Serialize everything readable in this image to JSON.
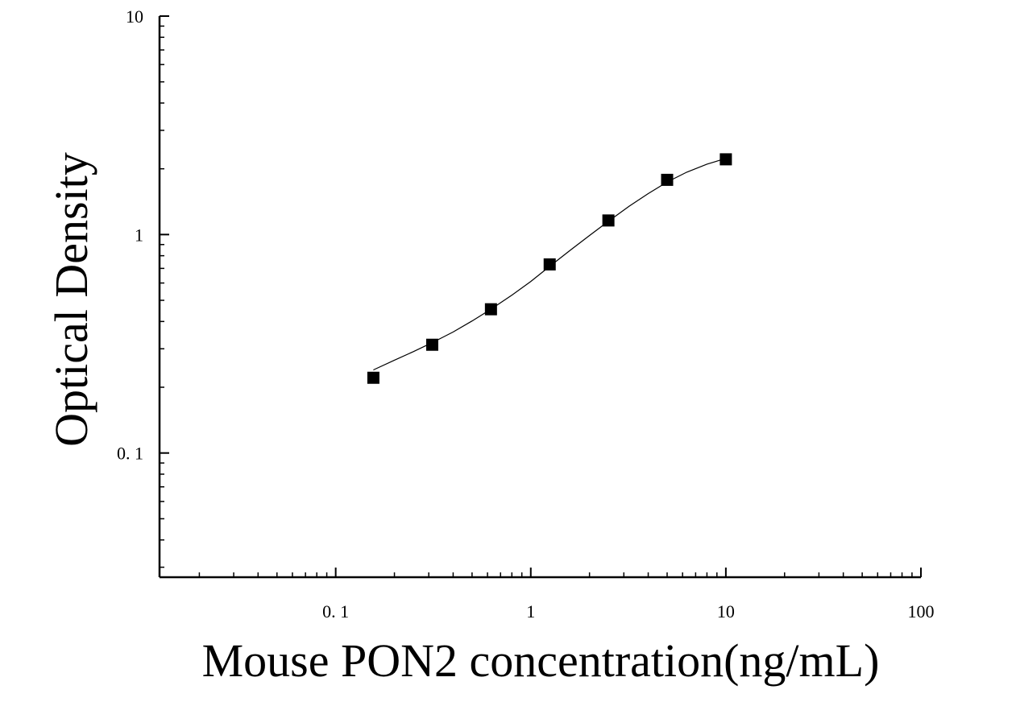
{
  "chart_data": {
    "type": "scatter",
    "title": "",
    "xlabel": "Mouse PON2 concentration(ng/mL)",
    "ylabel": "Optical Density",
    "x_scale": "log",
    "y_scale": "log",
    "xlim": [
      0.0125,
      100
    ],
    "ylim": [
      0.027,
      10
    ],
    "x_tick_values": [
      0.1,
      1,
      10,
      100
    ],
    "x_tick_labels": [
      "0. 1",
      "1",
      "10",
      "100"
    ],
    "y_tick_values": [
      0.1,
      1,
      10
    ],
    "y_tick_labels": [
      "0. 1",
      "1",
      "10"
    ],
    "grid": false,
    "legend": "none",
    "series": [
      {
        "x": [
          0.156,
          0.3125,
          0.625,
          1.25,
          2.5,
          5,
          10
        ],
        "y": [
          0.221,
          0.313,
          0.455,
          0.73,
          1.16,
          1.78,
          2.21
        ]
      }
    ],
    "fit_curve": {
      "type": "four-parameter logistic",
      "x": [
        0.156,
        0.2,
        0.25,
        0.3125,
        0.4,
        0.5,
        0.625,
        0.8,
        1.0,
        1.25,
        1.6,
        2.0,
        2.5,
        3.2,
        4.0,
        5.0,
        6.3,
        8.0,
        10
      ],
      "y": [
        0.24,
        0.266,
        0.291,
        0.32,
        0.358,
        0.402,
        0.455,
        0.528,
        0.61,
        0.715,
        0.85,
        0.99,
        1.15,
        1.35,
        1.54,
        1.74,
        1.93,
        2.1,
        2.23
      ]
    },
    "colors": {
      "marker": "#000000",
      "curve": "#000000",
      "axis": "#000000"
    }
  }
}
